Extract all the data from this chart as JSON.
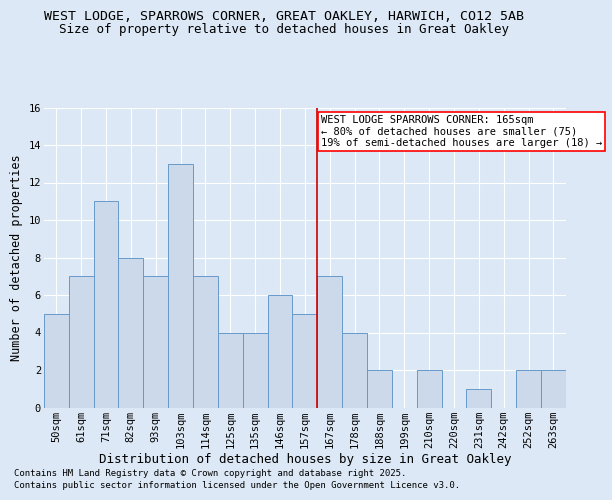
{
  "title": "WEST LODGE, SPARROWS CORNER, GREAT OAKLEY, HARWICH, CO12 5AB",
  "subtitle": "Size of property relative to detached houses in Great Oakley",
  "xlabel": "Distribution of detached houses by size in Great Oakley",
  "ylabel": "Number of detached properties",
  "categories": [
    "50sqm",
    "61sqm",
    "71sqm",
    "82sqm",
    "93sqm",
    "103sqm",
    "114sqm",
    "125sqm",
    "135sqm",
    "146sqm",
    "157sqm",
    "167sqm",
    "178sqm",
    "188sqm",
    "199sqm",
    "210sqm",
    "220sqm",
    "231sqm",
    "242sqm",
    "252sqm",
    "263sqm"
  ],
  "values": [
    5,
    7,
    11,
    8,
    7,
    13,
    7,
    4,
    4,
    6,
    5,
    7,
    4,
    2,
    0,
    2,
    0,
    1,
    0,
    2,
    2
  ],
  "bar_color": "#ccd9ea",
  "bar_edge_color": "#6699cc",
  "vline_color": "#cc0000",
  "vline_x_index": 10.5,
  "annotation_text": "WEST LODGE SPARROWS CORNER: 165sqm\n← 80% of detached houses are smaller (75)\n19% of semi-detached houses are larger (18) →",
  "ylim": [
    0,
    16
  ],
  "yticks": [
    0,
    2,
    4,
    6,
    8,
    10,
    12,
    14,
    16
  ],
  "footer1": "Contains HM Land Registry data © Crown copyright and database right 2025.",
  "footer2": "Contains public sector information licensed under the Open Government Licence v3.0.",
  "bg_color": "#dce8f5",
  "plot_bg_color": "#dce8f5",
  "grid_color": "#ffffff",
  "title_fontsize": 9.5,
  "subtitle_fontsize": 9,
  "xlabel_fontsize": 9,
  "ylabel_fontsize": 8.5,
  "tick_fontsize": 7.5,
  "annot_fontsize": 7.5,
  "footer_fontsize": 6.5
}
